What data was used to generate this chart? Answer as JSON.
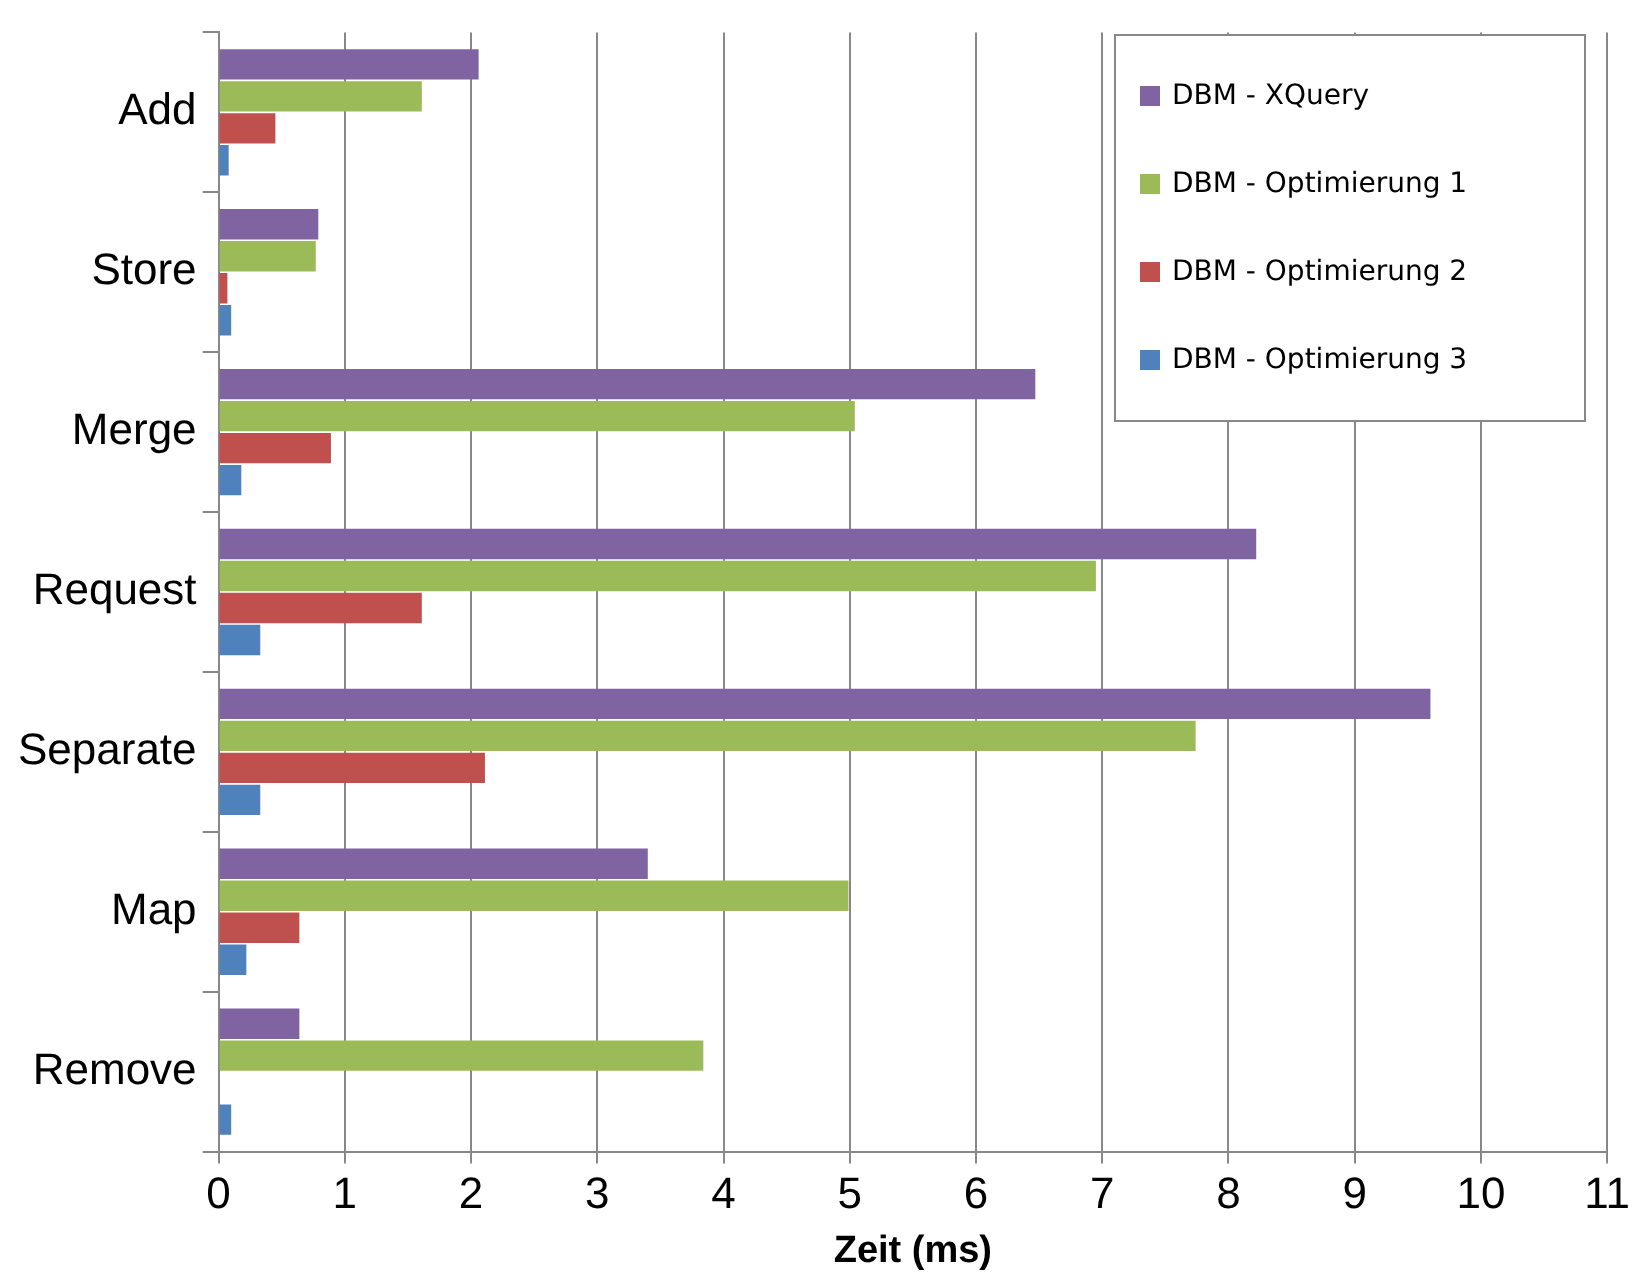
{
  "chart_data": {
    "type": "bar",
    "orientation": "horizontal",
    "xlabel": "Zeit (ms)",
    "categories": [
      "Add",
      "Store",
      "Merge",
      "Request",
      "Separate",
      "Map",
      "Remove"
    ],
    "series": [
      {
        "name": "DBM - XQuery",
        "color": "#8064a2",
        "values": [
          2.06,
          0.79,
          6.47,
          8.22,
          9.6,
          3.4,
          0.64
        ]
      },
      {
        "name": "DBM - Optimierung 1",
        "color": "#9bbb59",
        "values": [
          1.61,
          0.77,
          5.04,
          6.95,
          7.74,
          4.99,
          3.84
        ]
      },
      {
        "name": "DBM - Optimierung 2",
        "color": "#c0504d",
        "values": [
          0.45,
          0.07,
          0.89,
          1.61,
          2.11,
          0.64,
          null
        ]
      },
      {
        "name": "DBM - Optimierung 3",
        "color": "#4f81bd",
        "values": [
          0.08,
          0.1,
          0.18,
          0.33,
          0.33,
          0.22,
          0.1
        ]
      }
    ],
    "xlim": [
      0,
      11
    ],
    "xticks": [
      0,
      1,
      2,
      3,
      4,
      5,
      6,
      7,
      8,
      9,
      10,
      11
    ],
    "grid": "x",
    "legend": "top right"
  }
}
